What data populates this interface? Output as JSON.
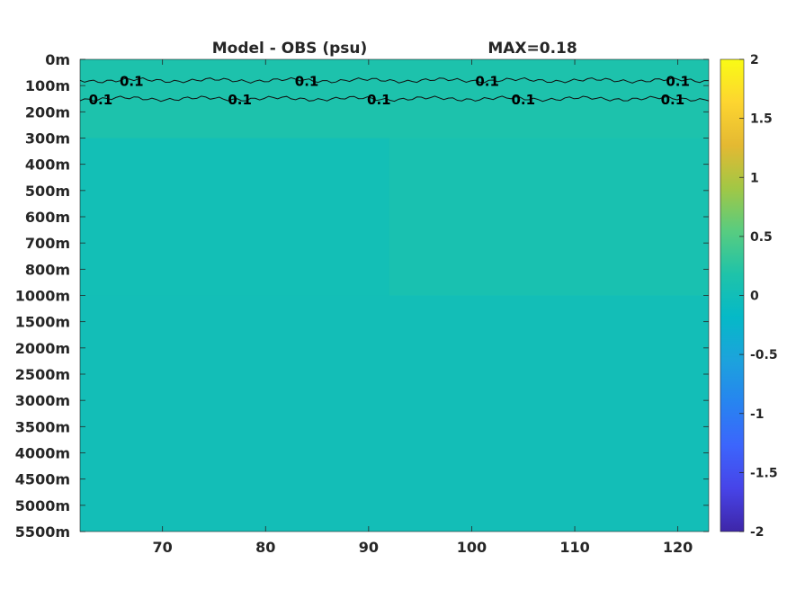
{
  "title": {
    "left": "Model - OBS (psu)",
    "right": "MAX=0.18"
  },
  "colormap": [
    "#3e26a8",
    "#4744e8",
    "#3c65fc",
    "#2784f0",
    "#1ca3dc",
    "#05b9c7",
    "#1fc3a9",
    "#58cc80",
    "#a2c745",
    "#e4b932",
    "#fdd530",
    "#f9fb15"
  ],
  "chart_data": {
    "type": "heatmap",
    "title": "Model - OBS (psu)",
    "annotation": "MAX=0.18",
    "xlabel": "",
    "ylabel": "",
    "x_ticks": [
      "70",
      "80",
      "90",
      "100",
      "110",
      "120"
    ],
    "x_tick_values": [
      70,
      80,
      90,
      100,
      110,
      120
    ],
    "xlim": [
      62,
      123
    ],
    "y_ticks": [
      "0m",
      "100m",
      "200m",
      "300m",
      "400m",
      "500m",
      "600m",
      "700m",
      "800m",
      "1000m",
      "1500m",
      "2000m",
      "2500m",
      "3000m",
      "3500m",
      "4000m",
      "4500m",
      "5000m",
      "5500m"
    ],
    "y_levels": [
      0,
      100,
      200,
      300,
      400,
      500,
      600,
      700,
      800,
      1000,
      1500,
      2000,
      2500,
      3000,
      3500,
      4000,
      4500,
      5000,
      5500
    ],
    "y_scale": "categorical depth levels, increasing downward",
    "colorbar": {
      "ticks": [
        "2",
        "1.5",
        "1",
        "0.5",
        "0",
        "-0.5",
        "-1",
        "-1.5",
        "-2"
      ],
      "tick_values": [
        2,
        1.5,
        1,
        0.5,
        0,
        -0.5,
        -1,
        -1.5,
        -2
      ],
      "clim": [
        -2,
        2
      ],
      "position": "right"
    },
    "field_regions": [
      {
        "depth_range": [
          0,
          300
        ],
        "x_range": [
          62,
          123
        ],
        "value": 0.15
      },
      {
        "depth_range": [
          300,
          1000
        ],
        "x_range": [
          62,
          92
        ],
        "value": 0.02
      },
      {
        "depth_range": [
          300,
          1000
        ],
        "x_range": [
          92,
          123
        ],
        "value": 0.1
      },
      {
        "depth_range": [
          1000,
          5500
        ],
        "x_range": [
          62,
          123
        ],
        "value": 0.01
      }
    ],
    "contours": [
      {
        "level": 0.1,
        "depth": 80,
        "labels": [
          "0.1",
          "0.1",
          "0.1",
          "0.1"
        ],
        "label_x": [
          67,
          84,
          101.5,
          120
        ]
      },
      {
        "level": 0.1,
        "depth": 150,
        "labels": [
          "0.1",
          "0.1",
          "0.1",
          "0.1",
          "0.1"
        ],
        "label_x": [
          64,
          77.5,
          91,
          105,
          119.5
        ]
      }
    ]
  }
}
